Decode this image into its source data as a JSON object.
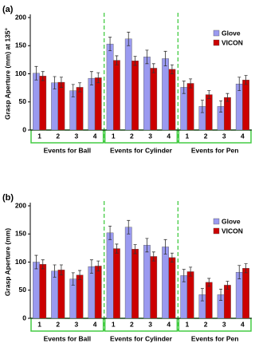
{
  "chart_data": [
    {
      "type": "bar",
      "panel_label": "(a)",
      "ylabel": "Grasp Aperture (mm) at 135°",
      "categories": [
        "1",
        "2",
        "3",
        "4",
        "1",
        "2",
        "3",
        "4",
        "1",
        "2",
        "3",
        "4"
      ],
      "groups": [
        "Events for Ball",
        "Events for Cylinder",
        "Events for Pen"
      ],
      "series": [
        {
          "name": "Glove",
          "color": "#9a9af0",
          "values": [
            101,
            84,
            70,
            92,
            153,
            162,
            130,
            127,
            76,
            42,
            42,
            82
          ],
          "errors": [
            12,
            11,
            11,
            12,
            12,
            12,
            12,
            13,
            11,
            11,
            10,
            12
          ]
        },
        {
          "name": "VICON",
          "color": "#cc0000",
          "values": [
            96,
            85,
            76,
            93,
            124,
            123,
            110,
            108,
            83,
            63,
            58,
            89
          ],
          "errors": [
            8,
            9,
            8,
            9,
            8,
            8,
            8,
            8,
            8,
            7,
            7,
            8
          ]
        }
      ],
      "ylim": [
        0,
        200
      ],
      "yticks": [
        0,
        50,
        100,
        150,
        200
      ],
      "legend": "upper right"
    },
    {
      "type": "bar",
      "panel_label": "(b)",
      "ylabel": "Grasp Aperture (mm)",
      "categories": [
        "1",
        "2",
        "3",
        "4",
        "1",
        "2",
        "3",
        "4",
        "1",
        "2",
        "3",
        "4"
      ],
      "groups": [
        "Events for Ball",
        "Events for Cylinder",
        "Events for Pen"
      ],
      "series": [
        {
          "name": "Glove",
          "color": "#9a9af0",
          "values": [
            100,
            84,
            70,
            92,
            152,
            162,
            130,
            127,
            76,
            42,
            42,
            82
          ],
          "errors": [
            12,
            11,
            11,
            12,
            12,
            12,
            12,
            13,
            11,
            11,
            10,
            12
          ]
        },
        {
          "name": "VICON",
          "color": "#cc0000",
          "values": [
            96,
            86,
            77,
            93,
            124,
            123,
            110,
            108,
            83,
            64,
            59,
            89
          ],
          "errors": [
            8,
            9,
            8,
            9,
            8,
            8,
            8,
            8,
            8,
            7,
            7,
            8
          ]
        }
      ],
      "ylim": [
        0,
        200
      ],
      "yticks": [
        0,
        50,
        100,
        150,
        200
      ],
      "legend": "upper right"
    }
  ]
}
